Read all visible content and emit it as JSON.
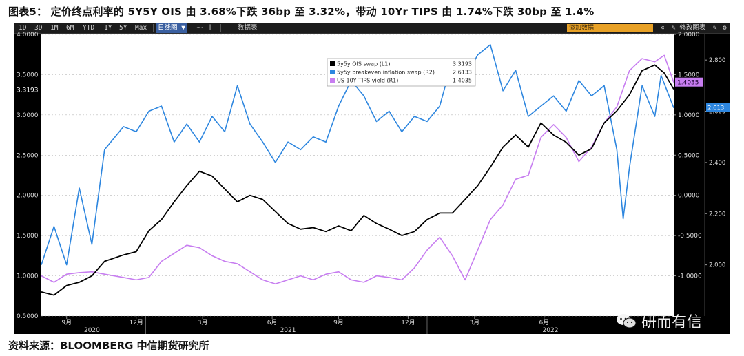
{
  "title": "图表5： 定价终点利率的 5Y5Y OIS 由 3.68%下跌 36bp 至 3.32%，带动 10Yr TIPS 由 1.74%下跌 30bp 至 1.4%",
  "source": "资料来源：BLOOMBERG  中信期货研究所",
  "watermark": "研而有信",
  "toolbar": {
    "periods": [
      "1D",
      "3D",
      "1M",
      "6M",
      "YTD",
      "1Y",
      "5Y",
      "Max"
    ],
    "chart_type": "日线图 ▼",
    "table_label": "数据表",
    "add_indicator_placeholder": "添加数据",
    "edit_label": "修改图表"
  },
  "colors": {
    "ois": "#000000",
    "breakeven": "#2d86df",
    "tips": "#c77df0",
    "plot_bg": "#ffffff",
    "terminal_bg": "#000000"
  },
  "chart_data": {
    "type": "line",
    "x_axis": {
      "month_labels": [
        "9月",
        "12月",
        "3月",
        "6月",
        "9月",
        "12月",
        "3月",
        "6月"
      ],
      "year_labels": [
        "2020",
        "2021",
        "2022"
      ]
    },
    "left_axis": {
      "ticks": [
        "0.5000",
        "1.0000",
        "1.5000",
        "2.0000",
        "2.5000",
        "3.0000",
        "3.5000",
        "4.0000"
      ],
      "range": [
        0.5,
        4.0
      ]
    },
    "right1_axis": {
      "ticks": [
        "-1.0000",
        "-0.5000",
        "0.0000",
        "0.5000",
        "1.0000",
        "1.5000",
        "2.0000"
      ],
      "range": [
        -1.5,
        2.0
      ]
    },
    "right2_axis": {
      "ticks": [
        "2.000",
        "2.200",
        "2.400",
        "2.600",
        "2.800"
      ],
      "range": [
        1.8,
        2.9
      ]
    },
    "last_value_tags": {
      "left": "3.3193",
      "right1": "1.4035",
      "right2": "2.613"
    },
    "legend": [
      {
        "label": "5y5y OIS swap (L1)",
        "value": "3.3193",
        "color": "#000000"
      },
      {
        "label": "5y5y breakeven inflation swap (R2)",
        "value": "2.6133",
        "color": "#2d86df"
      },
      {
        "label": "US 10Y TIPS yield (R1)",
        "value": "1.4035",
        "color": "#c77df0"
      }
    ],
    "series": [
      {
        "name": "5y5y OIS swap (L1)",
        "axis": "left",
        "points": [
          [
            0,
            0.8
          ],
          [
            0.02,
            0.76
          ],
          [
            0.04,
            0.88
          ],
          [
            0.06,
            0.92
          ],
          [
            0.08,
            1.0
          ],
          [
            0.1,
            1.18
          ],
          [
            0.13,
            1.26
          ],
          [
            0.15,
            1.3
          ],
          [
            0.17,
            1.56
          ],
          [
            0.19,
            1.7
          ],
          [
            0.21,
            1.92
          ],
          [
            0.23,
            2.12
          ],
          [
            0.25,
            2.3
          ],
          [
            0.27,
            2.24
          ],
          [
            0.29,
            2.08
          ],
          [
            0.31,
            1.92
          ],
          [
            0.33,
            2.0
          ],
          [
            0.35,
            1.95
          ],
          [
            0.37,
            1.8
          ],
          [
            0.39,
            1.65
          ],
          [
            0.41,
            1.58
          ],
          [
            0.43,
            1.6
          ],
          [
            0.45,
            1.55
          ],
          [
            0.47,
            1.62
          ],
          [
            0.49,
            1.56
          ],
          [
            0.51,
            1.75
          ],
          [
            0.53,
            1.65
          ],
          [
            0.55,
            1.58
          ],
          [
            0.57,
            1.5
          ],
          [
            0.59,
            1.55
          ],
          [
            0.61,
            1.7
          ],
          [
            0.63,
            1.78
          ],
          [
            0.65,
            1.78
          ],
          [
            0.67,
            1.95
          ],
          [
            0.69,
            2.12
          ],
          [
            0.71,
            2.35
          ],
          [
            0.73,
            2.6
          ],
          [
            0.75,
            2.75
          ],
          [
            0.77,
            2.6
          ],
          [
            0.79,
            2.9
          ],
          [
            0.81,
            2.75
          ],
          [
            0.83,
            2.66
          ],
          [
            0.85,
            2.5
          ],
          [
            0.87,
            2.58
          ],
          [
            0.89,
            2.9
          ],
          [
            0.91,
            3.05
          ],
          [
            0.93,
            3.25
          ],
          [
            0.95,
            3.55
          ],
          [
            0.97,
            3.62
          ],
          [
            0.985,
            3.52
          ],
          [
            1.0,
            3.32
          ]
        ]
      },
      {
        "name": "5y5y breakeven inflation swap (R2)",
        "axis": "right2",
        "points": [
          [
            0,
            2.0
          ],
          [
            0.02,
            2.15
          ],
          [
            0.04,
            2.0
          ],
          [
            0.06,
            2.3
          ],
          [
            0.08,
            2.08
          ],
          [
            0.1,
            2.45
          ],
          [
            0.13,
            2.54
          ],
          [
            0.15,
            2.52
          ],
          [
            0.17,
            2.6
          ],
          [
            0.19,
            2.62
          ],
          [
            0.21,
            2.48
          ],
          [
            0.23,
            2.55
          ],
          [
            0.25,
            2.48
          ],
          [
            0.27,
            2.58
          ],
          [
            0.29,
            2.52
          ],
          [
            0.31,
            2.7
          ],
          [
            0.33,
            2.55
          ],
          [
            0.35,
            2.48
          ],
          [
            0.37,
            2.4
          ],
          [
            0.39,
            2.48
          ],
          [
            0.41,
            2.45
          ],
          [
            0.43,
            2.5
          ],
          [
            0.45,
            2.48
          ],
          [
            0.47,
            2.62
          ],
          [
            0.49,
            2.72
          ],
          [
            0.51,
            2.66
          ],
          [
            0.53,
            2.56
          ],
          [
            0.55,
            2.6
          ],
          [
            0.57,
            2.52
          ],
          [
            0.59,
            2.58
          ],
          [
            0.61,
            2.56
          ],
          [
            0.63,
            2.62
          ],
          [
            0.65,
            2.8
          ],
          [
            0.67,
            2.73
          ],
          [
            0.69,
            2.82
          ],
          [
            0.71,
            2.86
          ],
          [
            0.73,
            2.68
          ],
          [
            0.75,
            2.76
          ],
          [
            0.77,
            2.58
          ],
          [
            0.79,
            2.62
          ],
          [
            0.81,
            2.66
          ],
          [
            0.83,
            2.6
          ],
          [
            0.85,
            2.72
          ],
          [
            0.87,
            2.66
          ],
          [
            0.89,
            2.7
          ],
          [
            0.91,
            2.45
          ],
          [
            0.92,
            2.18
          ],
          [
            0.93,
            2.38
          ],
          [
            0.95,
            2.7
          ],
          [
            0.97,
            2.58
          ],
          [
            0.98,
            2.74
          ],
          [
            1.0,
            2.613
          ]
        ]
      },
      {
        "name": "US 10Y TIPS yield (R1)",
        "axis": "right1",
        "points": [
          [
            0,
            -1.0
          ],
          [
            0.02,
            -1.08
          ],
          [
            0.04,
            -0.98
          ],
          [
            0.06,
            -0.96
          ],
          [
            0.08,
            -0.95
          ],
          [
            0.1,
            -0.98
          ],
          [
            0.13,
            -1.02
          ],
          [
            0.15,
            -1.05
          ],
          [
            0.17,
            -1.02
          ],
          [
            0.19,
            -0.82
          ],
          [
            0.21,
            -0.72
          ],
          [
            0.23,
            -0.62
          ],
          [
            0.25,
            -0.65
          ],
          [
            0.27,
            -0.75
          ],
          [
            0.29,
            -0.82
          ],
          [
            0.31,
            -0.85
          ],
          [
            0.33,
            -0.95
          ],
          [
            0.35,
            -1.05
          ],
          [
            0.37,
            -1.1
          ],
          [
            0.39,
            -1.05
          ],
          [
            0.41,
            -1.0
          ],
          [
            0.43,
            -1.05
          ],
          [
            0.45,
            -0.98
          ],
          [
            0.47,
            -0.95
          ],
          [
            0.49,
            -1.05
          ],
          [
            0.51,
            -1.08
          ],
          [
            0.53,
            -1.0
          ],
          [
            0.55,
            -1.02
          ],
          [
            0.57,
            -1.05
          ],
          [
            0.59,
            -0.9
          ],
          [
            0.61,
            -0.68
          ],
          [
            0.63,
            -0.52
          ],
          [
            0.65,
            -0.75
          ],
          [
            0.67,
            -1.05
          ],
          [
            0.69,
            -0.68
          ],
          [
            0.71,
            -0.3
          ],
          [
            0.73,
            -0.12
          ],
          [
            0.75,
            0.2
          ],
          [
            0.77,
            0.25
          ],
          [
            0.79,
            0.72
          ],
          [
            0.81,
            0.88
          ],
          [
            0.83,
            0.72
          ],
          [
            0.85,
            0.42
          ],
          [
            0.87,
            0.6
          ],
          [
            0.89,
            0.9
          ],
          [
            0.91,
            1.1
          ],
          [
            0.93,
            1.55
          ],
          [
            0.95,
            1.7
          ],
          [
            0.97,
            1.66
          ],
          [
            0.985,
            1.74
          ],
          [
            1.0,
            1.4035
          ]
        ]
      }
    ]
  }
}
